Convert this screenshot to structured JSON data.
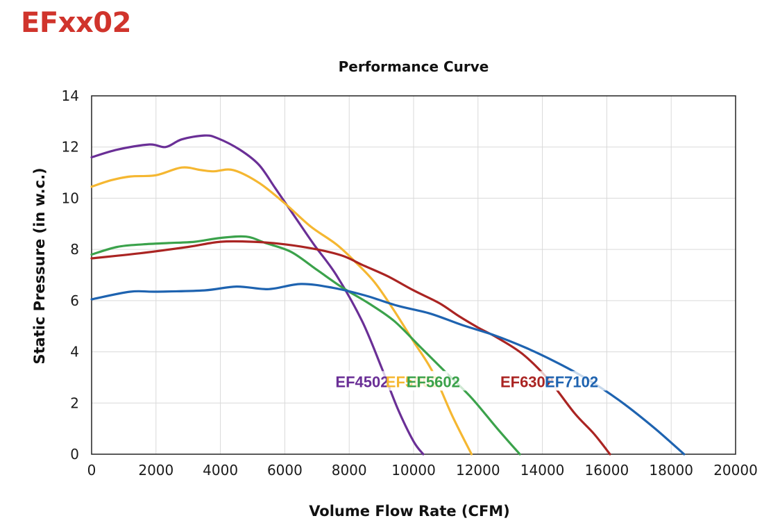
{
  "header": {
    "title": "EFxx02",
    "title_color": "#d0342c"
  },
  "chart_data": {
    "type": "line",
    "title": "Performance Curve",
    "xlabel": "Volume Flow Rate (CFM)",
    "ylabel": "Static Pressure (in w.c.)",
    "xlim": [
      0,
      20000
    ],
    "ylim": [
      0,
      14
    ],
    "xticks": [
      "0",
      "2000",
      "4000",
      "6000",
      "8000",
      "10000",
      "12000",
      "14000",
      "16000",
      "18000",
      "20000"
    ],
    "yticks": [
      "0",
      "2",
      "4",
      "6",
      "8",
      "10",
      "12",
      "14"
    ],
    "grid": true,
    "legend": "inline labels near curves",
    "series": [
      {
        "name": "EF4502",
        "color": "#6a2f96",
        "x": [
          0,
          800,
          1800,
          2300,
          2800,
          3500,
          3900,
          4600,
          5200,
          5700,
          6300,
          6900,
          7600,
          8400,
          9000,
          9500,
          10000,
          10300
        ],
        "y": [
          11.6,
          11.9,
          12.1,
          12.0,
          12.3,
          12.45,
          12.35,
          11.9,
          11.3,
          10.4,
          9.3,
          8.2,
          7.0,
          5.2,
          3.4,
          1.8,
          0.5,
          0.0
        ]
      },
      {
        "name": "EF5002",
        "color": "#f5b731",
        "x": [
          0,
          600,
          1200,
          2000,
          2800,
          3400,
          3800,
          4400,
          5200,
          6000,
          6800,
          7600,
          8200,
          8800,
          9400,
          10000,
          10600,
          11200,
          11800
        ],
        "y": [
          10.45,
          10.7,
          10.85,
          10.9,
          11.2,
          11.1,
          11.05,
          11.1,
          10.6,
          9.8,
          8.9,
          8.2,
          7.5,
          6.7,
          5.6,
          4.4,
          3.2,
          1.5,
          0.0
        ]
      },
      {
        "name": "EF5602",
        "color": "#3ba24b",
        "x": [
          0,
          800,
          1600,
          2400,
          3200,
          4000,
          4800,
          5400,
          6200,
          7000,
          7800,
          8600,
          9400,
          10200,
          11000,
          11800,
          12600,
          13300
        ],
        "y": [
          7.8,
          8.1,
          8.2,
          8.25,
          8.3,
          8.45,
          8.5,
          8.25,
          7.9,
          7.2,
          6.5,
          5.9,
          5.2,
          4.2,
          3.2,
          2.2,
          1.0,
          0.0
        ]
      },
      {
        "name": "EF6302",
        "color": "#aa2422",
        "x": [
          0,
          1500,
          3000,
          4000,
          5000,
          6000,
          7000,
          7800,
          8400,
          9200,
          10000,
          10800,
          11400,
          12000,
          12600,
          13400,
          14200,
          15000,
          15600,
          16100
        ],
        "y": [
          7.65,
          7.85,
          8.1,
          8.3,
          8.3,
          8.2,
          8.0,
          7.75,
          7.4,
          6.95,
          6.4,
          5.9,
          5.4,
          4.95,
          4.55,
          3.9,
          2.9,
          1.6,
          0.8,
          0.0
        ]
      },
      {
        "name": "EF7102",
        "color": "#1e63b0",
        "x": [
          0,
          1200,
          2000,
          3500,
          4500,
          5500,
          6500,
          7500,
          8500,
          9500,
          10500,
          11500,
          12500,
          13500,
          14500,
          15500,
          16500,
          17500,
          18400
        ],
        "y": [
          6.05,
          6.35,
          6.35,
          6.4,
          6.55,
          6.45,
          6.65,
          6.5,
          6.2,
          5.8,
          5.5,
          5.05,
          4.65,
          4.15,
          3.55,
          2.85,
          2.0,
          1.0,
          0.0
        ]
      }
    ]
  }
}
